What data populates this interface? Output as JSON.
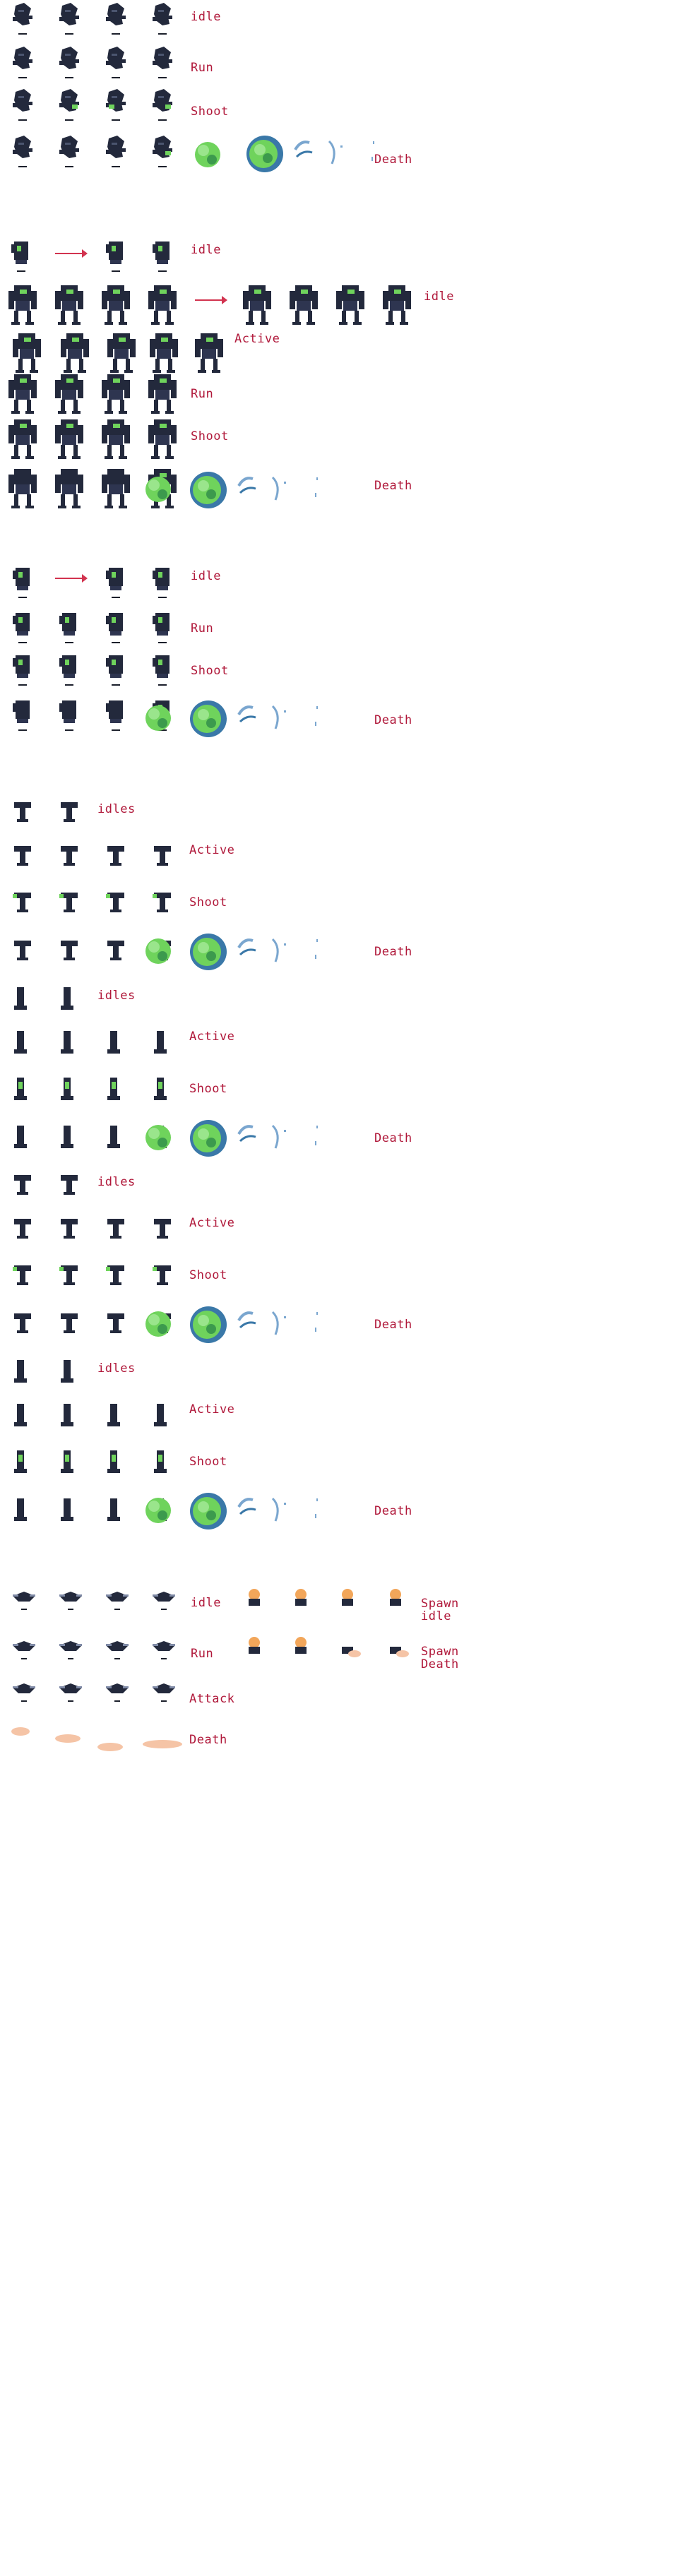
{
  "colors": {
    "label": "#b0183a",
    "body": "#23293c",
    "glow": "#6fd35c",
    "glow_dark": "#3c9a4d",
    "shadow": "#1b1f2b",
    "blast": "#3a78a8",
    "spark": "#7aa6cf",
    "orange": "#f2a65a",
    "flesh": "#f5c4a6"
  },
  "sections": [
    {
      "id": "enemy-1",
      "labels": {
        "idle": "idle",
        "run": "Run",
        "shoot": "Shoot",
        "death": "Death"
      }
    },
    {
      "id": "enemy-2",
      "labels": {
        "idle": "idle",
        "idle_2": "idle",
        "active": "Active",
        "run": "Run",
        "shoot": "Shoot",
        "death": "Death"
      }
    },
    {
      "id": "enemy-3",
      "labels": {
        "idle": "idle",
        "run": "Run",
        "shoot": "Shoot",
        "death": "Death"
      }
    },
    {
      "id": "turret-1",
      "labels": {
        "idles": "idles",
        "active": "Active",
        "shoot": "Shoot",
        "death": "Death"
      }
    },
    {
      "id": "turret-2",
      "labels": {
        "idles": "idles",
        "active": "Active",
        "shoot": "Shoot",
        "death": "Death"
      }
    },
    {
      "id": "turret-3",
      "labels": {
        "idles": "idles",
        "active": "Active",
        "shoot": "Shoot",
        "death": "Death"
      }
    },
    {
      "id": "turret-4",
      "labels": {
        "idles": "idles",
        "active": "Active",
        "shoot": "Shoot",
        "death": "Death"
      }
    },
    {
      "id": "drone",
      "labels": {
        "idle": "idle",
        "run": "Run",
        "attack": "Attack",
        "death": "Death",
        "spawn_idle": "Spawn idle",
        "spawn_death": "Spawn Death"
      }
    }
  ]
}
